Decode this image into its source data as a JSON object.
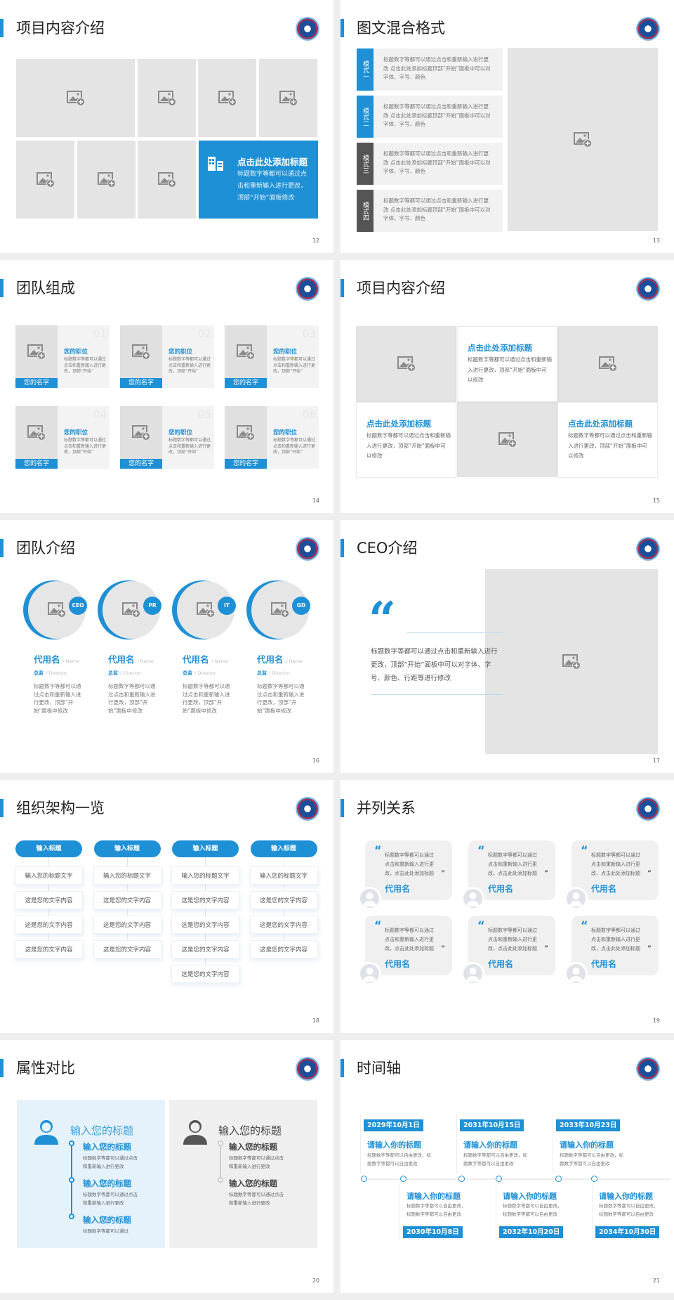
{
  "colors": {
    "accent": "#1e90d6",
    "dark_label": "#555555",
    "placeholder": "#e4e4e4"
  },
  "slides": {
    "s12": {
      "title": "项目内容介绍",
      "page": "12",
      "feature": {
        "icon": "building-icon",
        "title": "点击此处添加标题",
        "text": "标题数字等都可以通过点击和重新输入进行更改，顶部“开始”面板修改"
      }
    },
    "s13": {
      "title": "图文混合格式",
      "page": "13",
      "modes": [
        {
          "label": "模式一",
          "text": "标题数字等都可以通过点击和重新输入进行更改 点击此处添加标题顶部“开始”面板中可以对字体、字号、颜色"
        },
        {
          "label": "模式二",
          "text": "标题数字等都可以通过点击和重新输入进行更改 点击此处添加标题顶部“开始”面板中可以对字体、字号、颜色"
        },
        {
          "label": "模式三",
          "text": "标题数字等都可以通过点击和重新输入进行更改 点击此处添加标题顶部“开始”面板中可以对字体、字号、颜色"
        },
        {
          "label": "模式四",
          "text": "标题数字等都可以通过点击和重新输入进行更改 点击此处添加标题顶部“开始”面板中可以对字体、字号、颜色"
        }
      ]
    },
    "s14": {
      "title": "团队组成",
      "page": "14",
      "members": [
        {
          "num": "01",
          "position": "您的职位",
          "text": "标题数字等都可以通过点击和重新输入进行更改，顶部“开始”",
          "name": "您的名字"
        },
        {
          "num": "02",
          "position": "您的职位",
          "text": "标题数字等都可以通过点击和重新输入进行更改，顶部“开始”",
          "name": "您的名字"
        },
        {
          "num": "03",
          "position": "您的职位",
          "text": "标题数字等都可以通过点击和重新输入进行更改，顶部“开始”",
          "name": "您的名字"
        },
        {
          "num": "04",
          "position": "您的职位",
          "text": "标题数字等都可以通过点击和重新输入进行更改，顶部“开始”",
          "name": "您的名字"
        },
        {
          "num": "05",
          "position": "您的职位",
          "text": "标题数字等都可以通过点击和重新输入进行更改，顶部“开始”",
          "name": "您的名字"
        },
        {
          "num": "06",
          "position": "您的职位",
          "text": "标题数字等都可以通过点击和重新输入进行更改，顶部“开始”",
          "name": "您的名字"
        }
      ]
    },
    "s15": {
      "title": "项目内容介绍",
      "page": "15",
      "blocks": [
        {
          "title": "点击此处添加标题",
          "text": "标题数字等都可以通过点击和重新输入进行更改，顶部“开始”面板中可以修改"
        },
        {
          "title": "点击此处添加标题",
          "text": "标题数字等都可以通过点击和重新输入进行更改，顶部“开始”面板中可以修改"
        },
        {
          "title": "点击此处添加标题",
          "text": "标题数字等都可以通过点击和重新输入进行更改，顶部“开始”面板中可以修改"
        }
      ]
    },
    "s16": {
      "title": "团队介绍",
      "page": "16",
      "people": [
        {
          "badge": "CEO",
          "name": "代用名",
          "name_en": "/ Name",
          "role": "总监",
          "role_en": "/ Director",
          "text": "标题数字等都可以通过点击和重新输入进行更改，顶部“开始”面板中修改"
        },
        {
          "badge": "PR",
          "name": "代用名",
          "name_en": "/ Name",
          "role": "总监",
          "role_en": "/ Director",
          "text": "标题数字等都可以通过点击和重新输入进行更改，顶部“开始”面板中修改"
        },
        {
          "badge": "IT",
          "name": "代用名",
          "name_en": "/ Name",
          "role": "总监",
          "role_en": "/ Director",
          "text": "标题数字等都可以通过点击和重新输入进行更改，顶部“开始”面板中修改"
        },
        {
          "badge": "GD",
          "name": "代用名",
          "name_en": "/ Name",
          "role": "总监",
          "role_en": "/ Director",
          "text": "标题数字等都可以通过点击和重新输入进行更改，顶部“开始”面板中修改"
        }
      ]
    },
    "s17": {
      "title": "CEO介绍",
      "page": "17",
      "quote_mark": "“",
      "text": "标题数字等都可以通过点击和重新输入进行更改，顶部“开始”面板中可以对字体、字号、颜色、行距等进行修改"
    },
    "s18": {
      "title": "组织架构一览",
      "page": "18",
      "columns": [
        {
          "header": "输入标题",
          "items": [
            "输入您的标题文字",
            "这是您的文字内容",
            "这是您的文字内容",
            "这是您的文字内容"
          ]
        },
        {
          "header": "输入标题",
          "items": [
            "输入您的标题文字",
            "这是您的文字内容",
            "这是您的文字内容",
            "这是您的文字内容"
          ]
        },
        {
          "header": "输入标题",
          "items": [
            "输入您的标题文字",
            "这是您的文字内容",
            "这是您的文字内容",
            "这是您的文字内容",
            "这是您的文字内容"
          ]
        },
        {
          "header": "输入标题",
          "items": [
            "输入您的标题文字",
            "这是您的文字内容",
            "这是您的文字内容",
            "这是您的文字内容"
          ]
        }
      ]
    },
    "s19": {
      "title": "并列关系",
      "page": "19",
      "open_quote": "“",
      "close_quote": "”",
      "cards": [
        {
          "text": "标题数字等都可以通过点击和重新输入进行更改，点击此处添加标题",
          "name": "代用名"
        },
        {
          "text": "标题数字等都可以通过点击和重新输入进行更改，点击此处添加标题",
          "name": "代用名"
        },
        {
          "text": "标题数字等都可以通过点击和重新输入进行更改，点击此处添加标题",
          "name": "代用名"
        },
        {
          "text": "标题数字等都可以通过点击和重新输入进行更改，点击此处添加标题",
          "name": "代用名"
        },
        {
          "text": "标题数字等都可以通过点击和重新输入进行更改，点击此处添加标题",
          "name": "代用名"
        },
        {
          "text": "标题数字等都可以通过点击和重新输入进行更改，点击此处添加标题",
          "name": "代用名"
        }
      ]
    },
    "s20": {
      "title": "属性对比",
      "page": "20",
      "panels": [
        {
          "icon": "female-user-icon",
          "heading": "输入您的标题",
          "items": [
            {
              "title": "输入您的标题",
              "text": "标题数字等都可以通过点击和重新输入进行更改"
            },
            {
              "title": "输入您的标题",
              "text": "标题数字等都可以通过点击和重新输入进行更改"
            },
            {
              "title": "输入您的标题",
              "text": "标题数字等都可以通过"
            }
          ]
        },
        {
          "icon": "male-user-icon",
          "heading": "输入您的标题",
          "items": [
            {
              "title": "输入您的标题",
              "text": "标题数字等都可以通过点击和重新输入进行更改"
            },
            {
              "title": "输入您的标题",
              "text": "标题数字等都可以通过点击和重新输入进行更改"
            }
          ]
        }
      ]
    },
    "s21": {
      "title": "时间轴",
      "page": "21",
      "events": [
        {
          "date": "2029年10月1日",
          "title": "请输入你的标题",
          "text": "标题数字等都可以自由更改，标题数字等都可以自由更改"
        },
        {
          "date": "2030年10月8日",
          "title": "请输入你的标题",
          "text": "标题数字等都可以自由更改，标题数字等都可以自由更改"
        },
        {
          "date": "2031年10月15日",
          "title": "请输入你的标题",
          "text": "标题数字等都可以自由更改，标题数字等都可以自由更改"
        },
        {
          "date": "2032年10月20日",
          "title": "请输入你的标题",
          "text": "标题数字等都可以自由更改，标题数字等都可以自由更改"
        },
        {
          "date": "2033年10月23日",
          "title": "请输入你的标题",
          "text": "标题数字等都可以自由更改，标题数字等都可以自由更改"
        },
        {
          "date": "2034年10月30日",
          "title": "请输入你的标题",
          "text": "标题数字等都可以自由更改，标题数字等都可以自由更改"
        }
      ]
    }
  }
}
